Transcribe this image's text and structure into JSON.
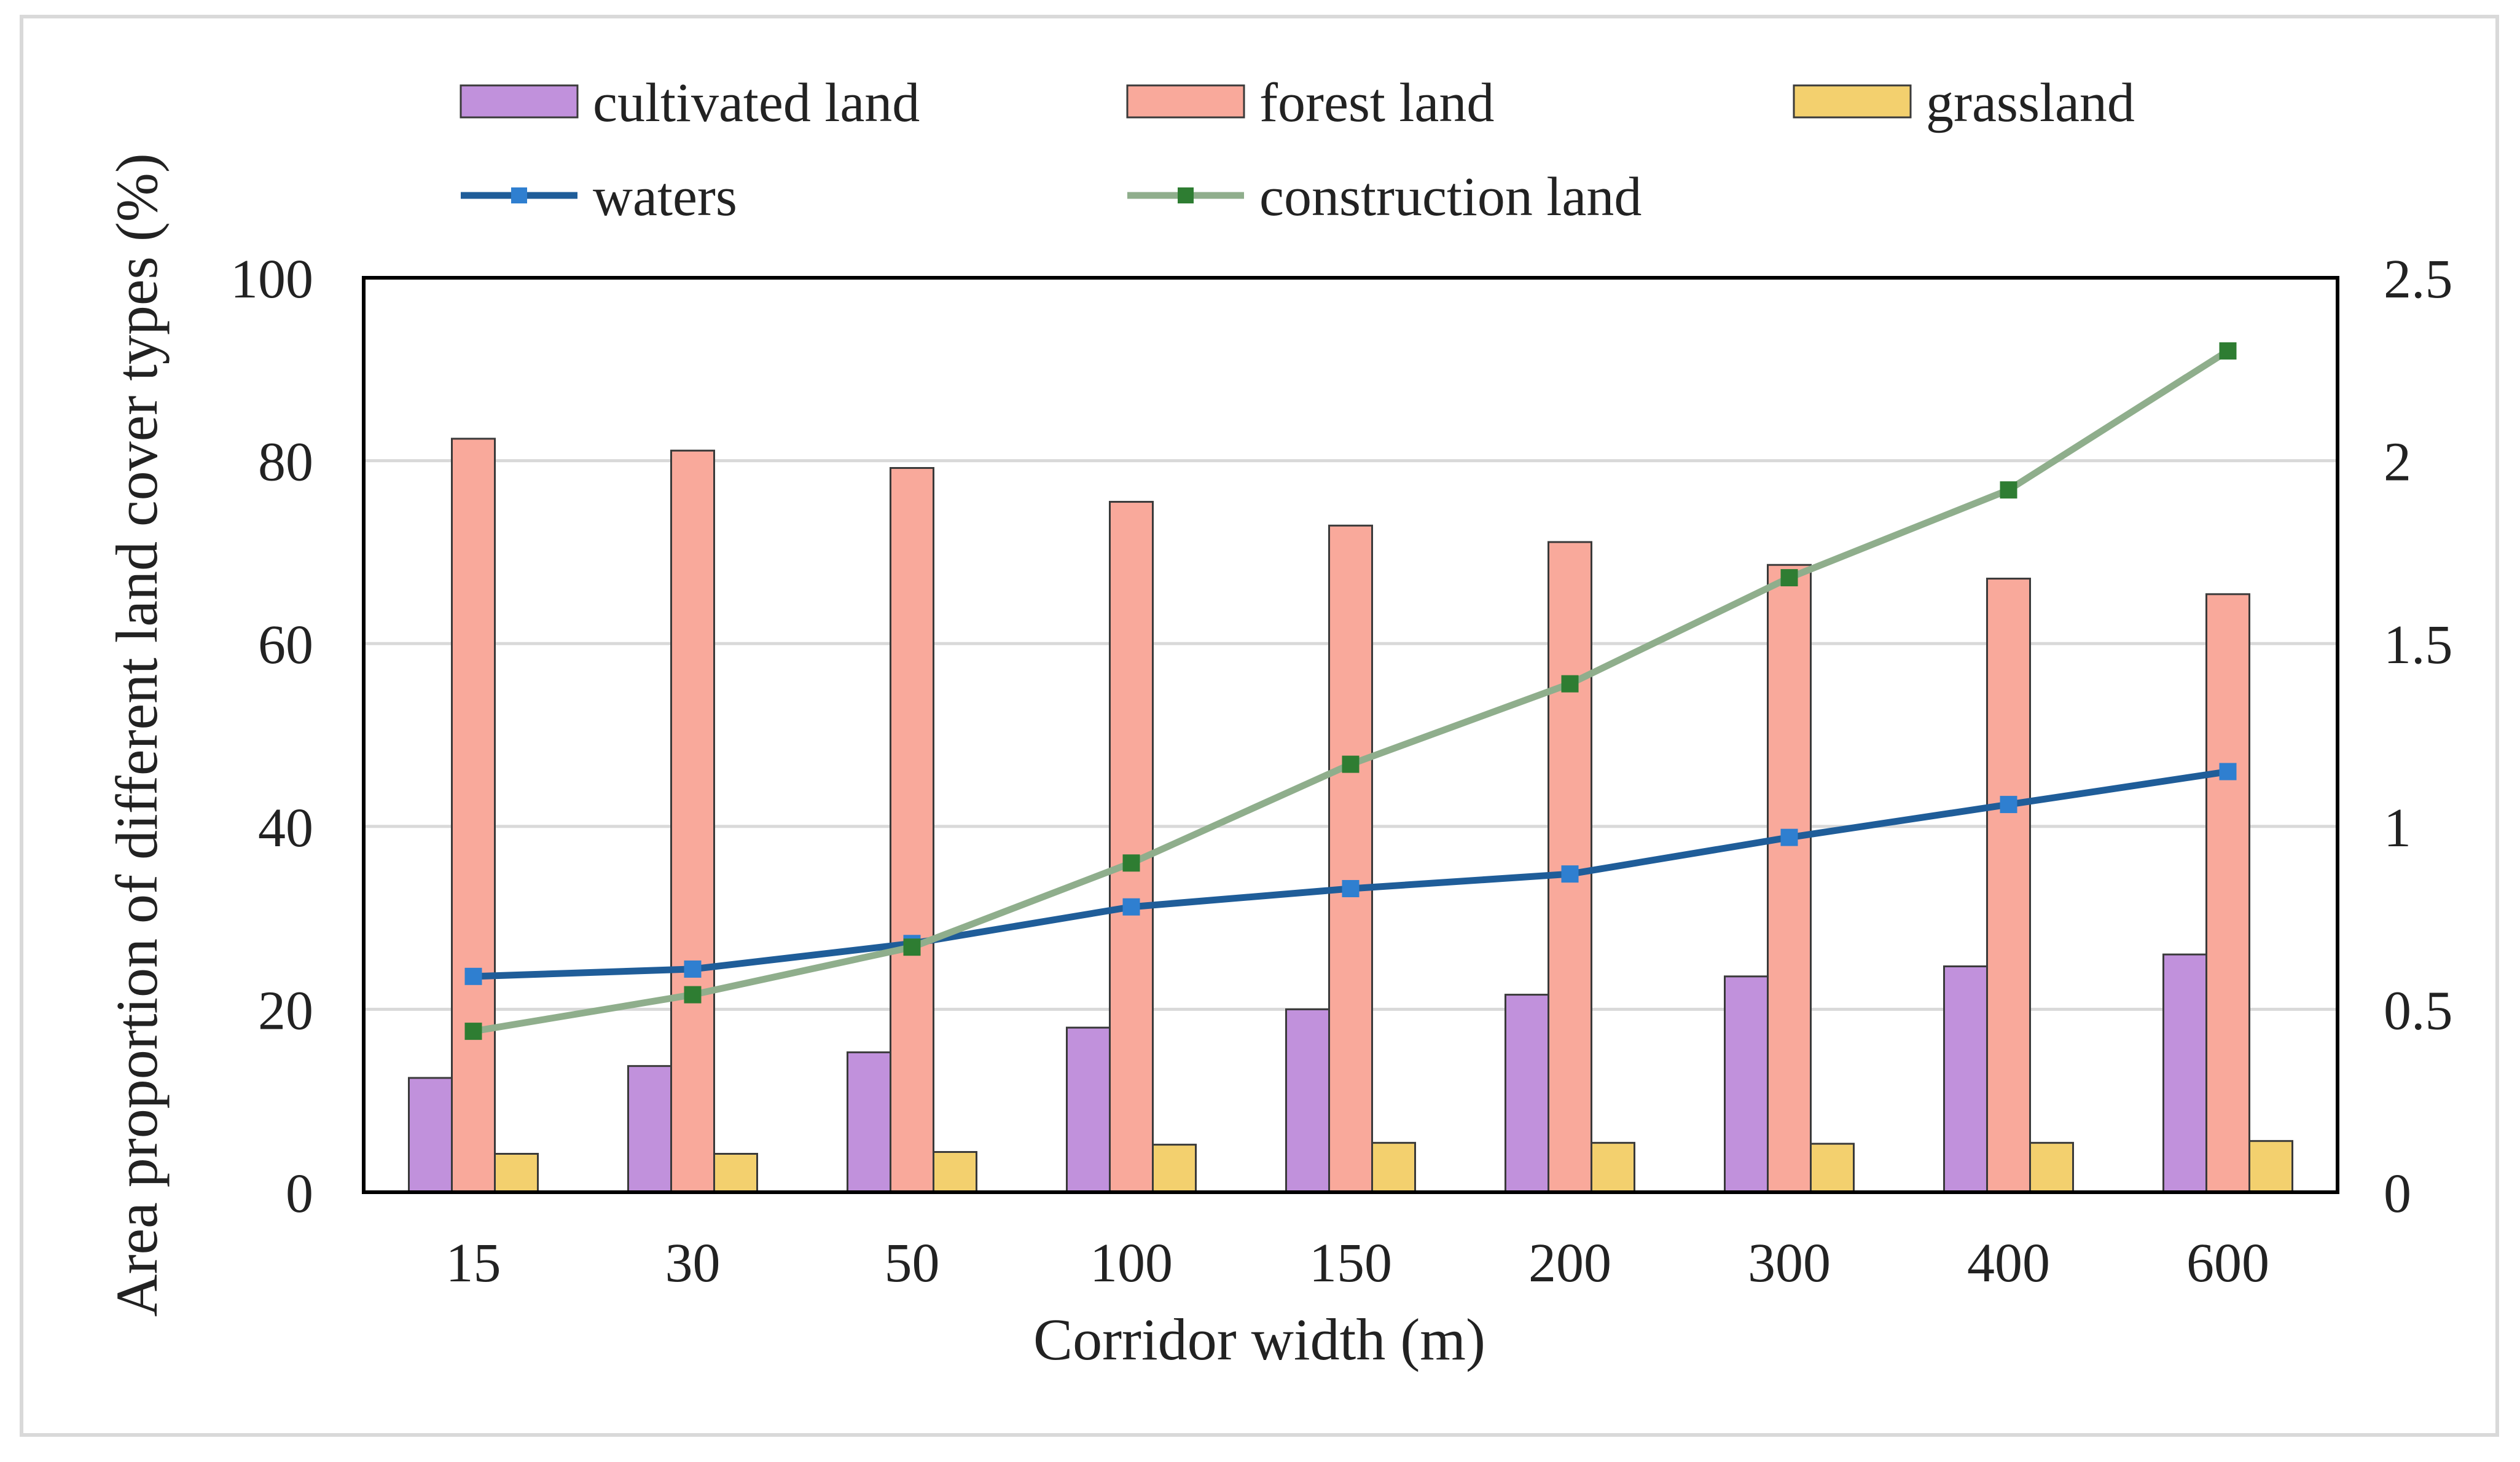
{
  "chart_data": {
    "type": "bar",
    "categories": [
      "15",
      "30",
      "50",
      "100",
      "150",
      "200",
      "300",
      "400",
      "600"
    ],
    "xlabel": "Corridor width (m)",
    "ylabel": "Area proportion of  different land cover types (%)",
    "ylim": [
      0,
      100
    ],
    "y_ticks": [
      "0",
      "20",
      "40",
      "60",
      "80",
      "100"
    ],
    "y2lim": [
      0,
      2.5
    ],
    "y2_ticks": [
      "0",
      "0.5",
      "1",
      "1.5",
      "2",
      "2.5"
    ],
    "legend_position": "top",
    "grid": true,
    "series": [
      {
        "name": "cultivated land",
        "kind": "bar",
        "axis": "left",
        "color": "#c191dc",
        "values": [
          12.5,
          13.8,
          15.3,
          18.0,
          20.0,
          21.6,
          23.6,
          24.7,
          26.0
        ]
      },
      {
        "name": "forest land",
        "kind": "bar",
        "axis": "left",
        "color": "#f9a99b",
        "values": [
          82.4,
          81.1,
          79.2,
          75.5,
          72.9,
          71.1,
          68.6,
          67.1,
          65.4
        ]
      },
      {
        "name": "grassland",
        "kind": "bar",
        "axis": "left",
        "color": "#f3d06e",
        "values": [
          4.2,
          4.2,
          4.4,
          5.2,
          5.4,
          5.4,
          5.3,
          5.4,
          5.6
        ]
      },
      {
        "name": "waters",
        "kind": "line",
        "axis": "right",
        "color": "#1f5d99",
        "marker_color": "#2f7fd0",
        "values": [
          0.59,
          0.61,
          0.68,
          0.78,
          0.83,
          0.87,
          0.97,
          1.06,
          1.15
        ]
      },
      {
        "name": "construction land",
        "kind": "line",
        "axis": "right",
        "color": "#8fae8c",
        "marker_color": "#2e7d32",
        "values": [
          0.44,
          0.54,
          0.67,
          0.9,
          1.17,
          1.39,
          1.68,
          1.92,
          2.3
        ]
      }
    ]
  }
}
